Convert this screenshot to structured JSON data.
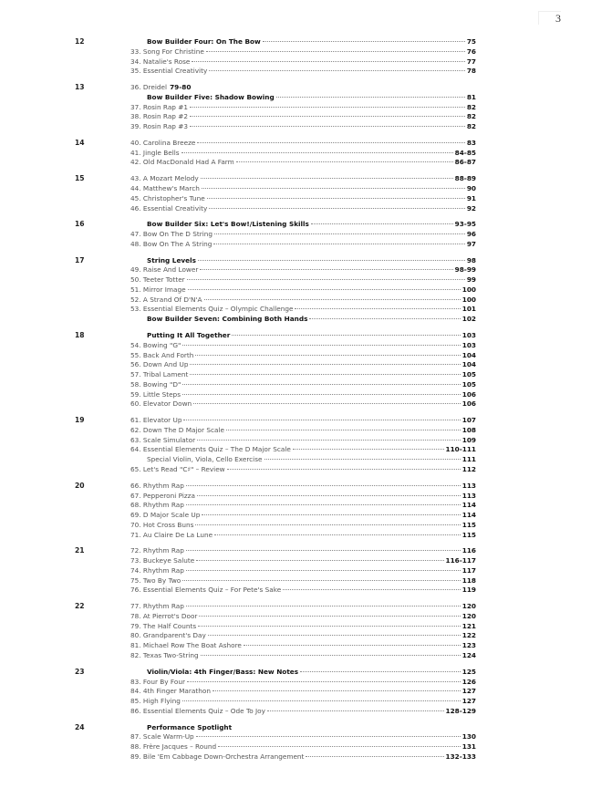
{
  "page_number": "3",
  "groups": [
    {
      "num": "12",
      "entries": [
        {
          "label": "Bow Builder Four: On The Bow",
          "page": "75",
          "bold": true
        },
        {
          "label": "33. Song For Christine",
          "page": "76"
        },
        {
          "label": "34. Natalie's Rose",
          "page": "77"
        },
        {
          "label": "35. Essential Creativity",
          "page": "78"
        }
      ]
    },
    {
      "num": "13",
      "entries": [
        {
          "label": "36. Dreidel",
          "inline_page": "79-80"
        },
        {
          "label": "Bow Builder Five: Shadow Bowing",
          "page": "81",
          "bold": true
        },
        {
          "label": "37. Rosin Rap #1",
          "page": "82"
        },
        {
          "label": "38. Rosin Rap #2",
          "page": "82"
        },
        {
          "label": "39. Rosin Rap #3",
          "page": "82"
        }
      ]
    },
    {
      "num": "14",
      "entries": [
        {
          "label": "40. Carolina Breeze",
          "page": "83"
        },
        {
          "label": "41. Jingle Bells",
          "page": "84-85"
        },
        {
          "label": "42. Old MacDonald Had A Farm",
          "page": "86-87"
        }
      ]
    },
    {
      "num": "15",
      "entries": [
        {
          "label": "43. A Mozart Melody",
          "page": "88-89"
        },
        {
          "label": "44. Matthew's March",
          "page": "90"
        },
        {
          "label": "45. Christopher's Tune",
          "page": "91"
        },
        {
          "label": "46. Essential Creativity",
          "page": "92"
        }
      ]
    },
    {
      "num": "16",
      "entries": [
        {
          "label": "Bow Builder Six: Let's Bow!/Listening Skills",
          "page": "93-95",
          "bold": true
        },
        {
          "label": "47. Bow On The D String",
          "page": "96"
        },
        {
          "label": "48. Bow On The A String",
          "page": "97"
        }
      ]
    },
    {
      "num": "17",
      "entries": [
        {
          "label": "String Levels",
          "page": "98",
          "bold": true
        },
        {
          "label": "49. Raise And Lower",
          "page": "98-99"
        },
        {
          "label": "50. Teeter Totter",
          "page": "99"
        },
        {
          "label": "51. Mirror Image",
          "page": "100"
        },
        {
          "label": "52. A Strand Of D'N'A",
          "page": "100"
        },
        {
          "label": "53. Essential Elements Quiz – Olympic Challenge",
          "page": "101"
        },
        {
          "label": "Bow Builder Seven: Combining Both Hands",
          "page": "102",
          "bold": true
        }
      ]
    },
    {
      "num": "18",
      "entries": [
        {
          "label": "Putting It All Together",
          "page": "103",
          "bold": true
        },
        {
          "label": "54. Bowing \"G\"",
          "page": "103"
        },
        {
          "label": "55. Back And Forth",
          "page": "104"
        },
        {
          "label": "56. Down And Up",
          "page": "104"
        },
        {
          "label": "57. Tribal Lament",
          "page": "105"
        },
        {
          "label": "58. Bowing \"D\"",
          "page": "105"
        },
        {
          "label": "59. Little Steps",
          "page": "106"
        },
        {
          "label": "60. Elevator Down",
          "page": "106"
        }
      ]
    },
    {
      "num": "19",
      "entries": [
        {
          "label": "61. Elevator Up",
          "page": "107"
        },
        {
          "label": "62. Down The D Major Scale",
          "page": "108"
        },
        {
          "label": "63. Scale Simulator",
          "page": "109"
        },
        {
          "label": "64. Essential Elements Quiz – The D Major Scale",
          "page": "110-111"
        },
        {
          "label": "Special Violin, Viola, Cello Exercise",
          "page": "111",
          "sub": true
        },
        {
          "label": "65. Let's Read \"C♯\" – Review",
          "page": "112"
        }
      ]
    },
    {
      "num": "20",
      "entries": [
        {
          "label": "66. Rhythm Rap",
          "page": "113"
        },
        {
          "label": "67. Pepperoni Pizza",
          "page": "113"
        },
        {
          "label": "68. Rhythm Rap",
          "page": "114"
        },
        {
          "label": "69. D Major Scale Up",
          "page": "114"
        },
        {
          "label": "70. Hot Cross Buns",
          "page": "115"
        },
        {
          "label": "71. Au Claire De La Lune",
          "page": "115"
        }
      ]
    },
    {
      "num": "21",
      "entries": [
        {
          "label": "72. Rhythm Rap",
          "page": "116"
        },
        {
          "label": "73. Buckeye Salute",
          "page": "116-117"
        },
        {
          "label": "74. Rhythm Rap",
          "page": "117"
        },
        {
          "label": "75. Two By Two",
          "page": "118"
        },
        {
          "label": "76. Essential Elements Quiz – For Pete's Sake",
          "page": "119"
        }
      ]
    },
    {
      "num": "22",
      "entries": [
        {
          "label": "77. Rhythm Rap",
          "page": "120"
        },
        {
          "label": "78. At Pierrot's Door",
          "page": "120"
        },
        {
          "label": "79. The Half Counts",
          "page": "121"
        },
        {
          "label": "80. Grandparent's Day",
          "page": "122"
        },
        {
          "label": "81. Michael Row The Boat Ashore",
          "page": "123"
        },
        {
          "label": "82. Texas Two-String",
          "page": "124"
        }
      ]
    },
    {
      "num": "23",
      "entries": [
        {
          "label": "Violin/Viola: 4th Finger/Bass: New Notes",
          "page": "125",
          "bold": true
        },
        {
          "label": "83. Four By Four",
          "page": "126"
        },
        {
          "label": "84. 4th Finger Marathon",
          "page": "127"
        },
        {
          "label": "85. High Flying",
          "page": "127"
        },
        {
          "label": "86. Essential Elements Quiz – Ode To Joy",
          "page": "128-129"
        }
      ]
    },
    {
      "num": "24",
      "entries": [
        {
          "label": "Performance Spotlight",
          "bold": true
        },
        {
          "label": "87. Scale Warm-Up",
          "page": "130"
        },
        {
          "label": "88. Frère Jacques – Round",
          "page": "131"
        },
        {
          "label": "89. Bile 'Em Cabbage Down-Orchestra Arrangement",
          "page": "132-133"
        }
      ]
    }
  ]
}
